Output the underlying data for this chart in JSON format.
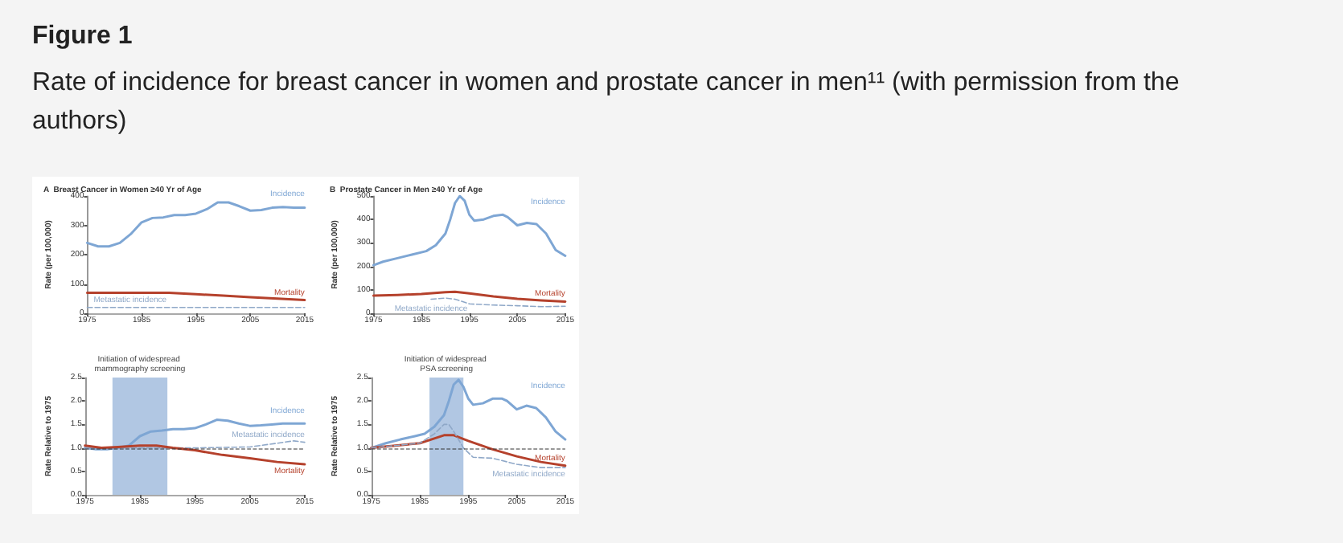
{
  "chart_data": [
    {
      "type": "line",
      "title": "A  Breast Cancer in Women ≥40 Yr of Age",
      "annotations": [
        "Figure 1",
        "Rate of incidence for breast cancer in women and prostate cancer in men¹¹ (with permission from the authors)"
      ],
      "ylabel": "Rate (per 100,000)",
      "xlim": [
        1975,
        2015
      ],
      "xticks": [
        1975,
        1985,
        1995,
        2005,
        2015
      ],
      "ylim": [
        0,
        400
      ],
      "yticks": [
        0,
        100,
        200,
        300,
        400
      ],
      "grid": false,
      "legend": false,
      "marker": "none",
      "series": [
        {
          "name": "Incidence",
          "color": "#7ea6d4",
          "x": [
            1975,
            1977,
            1979,
            1981,
            1983,
            1985,
            1987,
            1989,
            1991,
            1993,
            1995,
            1997,
            1999,
            2001,
            2003,
            2005,
            2007,
            2009,
            2011,
            2013,
            2015
          ],
          "values": [
            240,
            228,
            228,
            240,
            270,
            310,
            325,
            327,
            335,
            335,
            340,
            355,
            378,
            378,
            365,
            350,
            352,
            360,
            362,
            360,
            360
          ]
        },
        {
          "name": "Mortality",
          "color": "#b5412c",
          "x": [
            1975,
            1980,
            1985,
            1990,
            1995,
            2000,
            2005,
            2010,
            2015
          ],
          "values": [
            70,
            70,
            70,
            70,
            65,
            60,
            55,
            50,
            45
          ]
        },
        {
          "name": "Metastatic incidence",
          "color": "#8fa8c8",
          "line_style": "dashed",
          "x": [
            1975,
            1985,
            1995,
            2005,
            2015
          ],
          "values": [
            20,
            20,
            20,
            20,
            20
          ]
        }
      ]
    },
    {
      "type": "line",
      "title": "B  Prostate Cancer in Men ≥40 Yr of Age",
      "ylabel": "Rate (per 100,000)",
      "xlim": [
        1975,
        2015
      ],
      "xticks": [
        1975,
        1985,
        1995,
        2005,
        2015
      ],
      "ylim": [
        0,
        500
      ],
      "yticks": [
        0,
        100,
        200,
        300,
        400,
        500
      ],
      "grid": false,
      "legend": false,
      "marker": "none",
      "series": [
        {
          "name": "Incidence",
          "color": "#7ea6d4",
          "x": [
            1975,
            1977,
            1980,
            1983,
            1986,
            1988,
            1990,
            1991,
            1992,
            1993,
            1994,
            1995,
            1996,
            1998,
            2000,
            2002,
            2003,
            2005,
            2007,
            2009,
            2011,
            2013,
            2015
          ],
          "values": [
            205,
            220,
            235,
            250,
            265,
            290,
            340,
            400,
            470,
            500,
            480,
            420,
            395,
            400,
            415,
            420,
            410,
            375,
            385,
            380,
            340,
            270,
            245
          ]
        },
        {
          "name": "Mortality",
          "color": "#b5412c",
          "x": [
            1975,
            1980,
            1985,
            1990,
            1992,
            1995,
            2000,
            2005,
            2010,
            2015
          ],
          "values": [
            75,
            78,
            82,
            90,
            92,
            85,
            72,
            62,
            55,
            50
          ]
        },
        {
          "name": "Metastatic incidence",
          "color": "#8fa8c8",
          "line_style": "dashed",
          "x": [
            1987,
            1990,
            1992,
            1995,
            2000,
            2005,
            2010,
            2015
          ],
          "values": [
            60,
            65,
            60,
            40,
            35,
            32,
            28,
            30
          ]
        }
      ]
    },
    {
      "type": "line",
      "ylabel": "Rate Relative to 1975",
      "xlim": [
        1975,
        2015
      ],
      "xticks": [
        1975,
        1985,
        1995,
        2005,
        2015
      ],
      "ylim": [
        0,
        2.5
      ],
      "yticks": [
        {
          "value": 0,
          "label": "0.0"
        },
        {
          "value": 0.5,
          "label": "0.5"
        },
        {
          "value": 1,
          "label": "1.0"
        },
        {
          "value": 1.5,
          "label": "1.5"
        },
        {
          "value": 2,
          "label": "2.0"
        },
        {
          "value": 2.5,
          "label": "2.5"
        }
      ],
      "grid": false,
      "legend": false,
      "marker": "none",
      "bands": [
        {
          "axis": "x",
          "from": 1980,
          "to": 1990,
          "label": "Initiation of widespread mammography screening",
          "color": "#a9c1e0"
        }
      ],
      "ref_lines": [
        {
          "axis": "y",
          "value": 1,
          "color": "#333333",
          "line_style": "dashed"
        }
      ],
      "series": [
        {
          "name": "Incidence",
          "color": "#7ea6d4",
          "x": [
            1975,
            1977,
            1979,
            1981,
            1983,
            1985,
            1987,
            1989,
            1991,
            1993,
            1995,
            1997,
            1999,
            2001,
            2003,
            2005,
            2007,
            2009,
            2011,
            2013,
            2015
          ],
          "values": [
            1.0,
            0.97,
            0.97,
            1.0,
            1.05,
            1.25,
            1.35,
            1.37,
            1.4,
            1.4,
            1.42,
            1.5,
            1.6,
            1.58,
            1.52,
            1.47,
            1.48,
            1.5,
            1.52,
            1.52,
            1.52
          ]
        },
        {
          "name": "Metastatic incidence",
          "color": "#8fa8c8",
          "line_style": "dashed",
          "x": [
            1975,
            1985,
            1995,
            2005,
            2010,
            2013,
            2015
          ],
          "values": [
            1.0,
            1.0,
            1.0,
            1.02,
            1.1,
            1.15,
            1.12
          ]
        },
        {
          "name": "Mortality",
          "color": "#b5412c",
          "x": [
            1975,
            1978,
            1981,
            1985,
            1988,
            1991,
            1995,
            2000,
            2005,
            2010,
            2015
          ],
          "values": [
            1.05,
            1.0,
            1.02,
            1.05,
            1.05,
            1.0,
            0.95,
            0.85,
            0.78,
            0.7,
            0.65
          ]
        }
      ]
    },
    {
      "type": "line",
      "ylabel": "Rate Relative to 1975",
      "xlim": [
        1975,
        2015
      ],
      "xticks": [
        1975,
        1985,
        1995,
        2005,
        2015
      ],
      "ylim": [
        0,
        2.5
      ],
      "yticks": [
        {
          "value": 0,
          "label": "0.0"
        },
        {
          "value": 0.5,
          "label": "0.5"
        },
        {
          "value": 1,
          "label": "1.0"
        },
        {
          "value": 1.5,
          "label": "1.5"
        },
        {
          "value": 2,
          "label": "2.0"
        },
        {
          "value": 2.5,
          "label": "2.5"
        }
      ],
      "grid": false,
      "legend": false,
      "marker": "none",
      "bands": [
        {
          "axis": "x",
          "from": 1987,
          "to": 1994,
          "label": "Initiation of widespread PSA screening",
          "color": "#a9c1e0"
        }
      ],
      "ref_lines": [
        {
          "axis": "y",
          "value": 1,
          "color": "#333333",
          "line_style": "dashed"
        }
      ],
      "series": [
        {
          "name": "Incidence",
          "color": "#7ea6d4",
          "x": [
            1975,
            1978,
            1981,
            1984,
            1986,
            1988,
            1990,
            1991,
            1992,
            1993,
            1994,
            1995,
            1996,
            1998,
            2000,
            2002,
            2003,
            2005,
            2007,
            2009,
            2011,
            2013,
            2015
          ],
          "values": [
            1.0,
            1.1,
            1.18,
            1.25,
            1.3,
            1.45,
            1.7,
            2.0,
            2.35,
            2.45,
            2.3,
            2.05,
            1.92,
            1.95,
            2.05,
            2.05,
            2.0,
            1.82,
            1.9,
            1.85,
            1.65,
            1.35,
            1.18
          ]
        },
        {
          "name": "Mortality",
          "color": "#b5412c",
          "x": [
            1975,
            1980,
            1985,
            1988,
            1990,
            1992,
            1995,
            2000,
            2005,
            2010,
            2015
          ],
          "values": [
            1.0,
            1.05,
            1.1,
            1.2,
            1.27,
            1.27,
            1.15,
            0.97,
            0.82,
            0.7,
            0.62
          ]
        },
        {
          "name": "Metastatic incidence",
          "color": "#8fa8c8",
          "line_style": "dashed",
          "x": [
            1975,
            1980,
            1985,
            1988,
            1990,
            1991,
            1992,
            1994,
            1996,
            2000,
            2005,
            2010,
            2015
          ],
          "values": [
            1.0,
            1.05,
            1.1,
            1.3,
            1.5,
            1.5,
            1.35,
            1.0,
            0.8,
            0.78,
            0.65,
            0.58,
            0.58
          ]
        }
      ]
    }
  ]
}
